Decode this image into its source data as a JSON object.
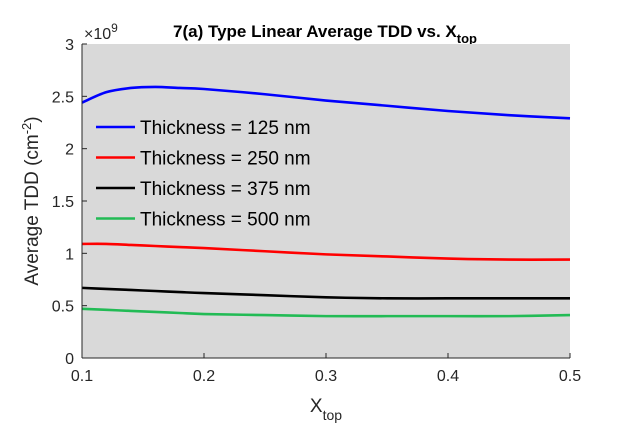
{
  "chart_data": {
    "type": "line",
    "title": {
      "main": "7(a) Type Linear Average TDD vs. X",
      "subscript": "top"
    },
    "xlabel": {
      "base": "X",
      "subscript": "top"
    },
    "ylabel": {
      "base": "Average TDD (cm",
      "superscript": "-2",
      "suffix": ")"
    },
    "y_multiplier": {
      "prefix": "×10",
      "exponent": "9"
    },
    "xlim": [
      0.1,
      0.5
    ],
    "ylim": [
      0,
      3
    ],
    "x_ticks": [
      0.1,
      0.2,
      0.3,
      0.4,
      0.5
    ],
    "x_tick_labels": [
      "0.1",
      "0.2",
      "0.3",
      "0.4",
      "0.5"
    ],
    "y_ticks": [
      0,
      0.5,
      1,
      1.5,
      2,
      2.5,
      3
    ],
    "y_tick_labels": [
      "0",
      "0.5",
      "1",
      "1.5",
      "2",
      "2.5",
      "3"
    ],
    "plot_background": "#d9d9d9",
    "grid": false,
    "legend_position": "upper-left",
    "x": [
      0.1,
      0.12,
      0.14,
      0.16,
      0.18,
      0.2,
      0.25,
      0.3,
      0.35,
      0.4,
      0.45,
      0.5
    ],
    "series": [
      {
        "name": "Thickness = 125 nm",
        "color": "#0000ff",
        "values": [
          2.44,
          2.54,
          2.58,
          2.59,
          2.58,
          2.57,
          2.52,
          2.46,
          2.41,
          2.36,
          2.32,
          2.29
        ]
      },
      {
        "name": "Thickness = 250 nm",
        "color": "#ff0000",
        "values": [
          1.09,
          1.09,
          1.08,
          1.07,
          1.06,
          1.05,
          1.02,
          0.99,
          0.97,
          0.95,
          0.94,
          0.94
        ]
      },
      {
        "name": "Thickness = 375 nm",
        "color": "#000000",
        "values": [
          0.67,
          0.66,
          0.65,
          0.64,
          0.63,
          0.62,
          0.6,
          0.58,
          0.57,
          0.57,
          0.57,
          0.57
        ]
      },
      {
        "name": "Thickness = 500 nm",
        "color": "#22bb55",
        "values": [
          0.47,
          0.46,
          0.45,
          0.44,
          0.43,
          0.42,
          0.41,
          0.4,
          0.4,
          0.4,
          0.4,
          0.41
        ]
      }
    ]
  }
}
